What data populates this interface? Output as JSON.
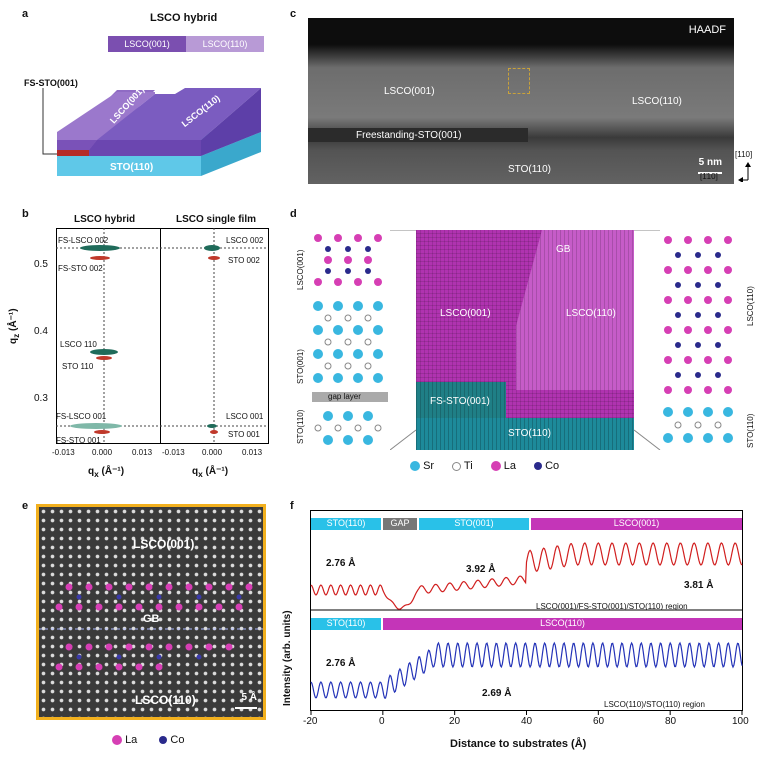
{
  "panels": {
    "a": "a",
    "b": "b",
    "c": "c",
    "d": "d",
    "e": "e",
    "f": "f"
  },
  "a": {
    "title": "LSCO hybrid",
    "bar_left": "LSCO(001)",
    "bar_right": "LSCO(110)",
    "fs_sto": "FS-STO(001)",
    "block_lsco001": "LSCO(001)",
    "block_lsco110": "LSCO(110)",
    "substrate": "STO(110)",
    "colors": {
      "lsco001": "#7b4fb0",
      "lsco110": "#b89ad6",
      "sto": "#5fc8e8",
      "fs": "#c0392b"
    }
  },
  "b": {
    "title_left": "LSCO hybrid",
    "title_right": "LSCO single film",
    "ylabel": "q",
    "ylabel_sub": "z",
    "ylabel_unit": "(Å⁻¹)",
    "xlabel": "q",
    "xlabel_sub": "x",
    "xlabel_unit": "(Å⁻¹)",
    "yticks": [
      "0.5",
      "0.4",
      "0.3"
    ],
    "xticks": [
      "-0.013",
      "0.000",
      "0.013"
    ],
    "left_labels": [
      "FS-LSCO 002",
      "FS-STO 002",
      "LSCO 110",
      "STO 110",
      "FS-LSCO 001",
      "FS-STO 001"
    ],
    "right_labels": [
      "LSCO 002",
      "STO 002",
      "LSCO 001",
      "STO 001"
    ]
  },
  "c": {
    "mode": "HAADF",
    "lsco001": "LSCO(001)",
    "lsco110": "LSCO(110)",
    "fs": "Freestanding-STO(001)",
    "sto": "STO(110)",
    "scale": "5 nm",
    "axis_up": "[110]",
    "axis_right": "[1̄10]"
  },
  "d": {
    "gb": "GB",
    "lsco001": "LSCO(001)",
    "lsco110": "LSCO(110)",
    "fs": "FS-STO(001)",
    "sto": "STO(110)",
    "gap": "gap layer",
    "side_left": [
      "LSCO(001)",
      "STO(001)",
      "STO(110)"
    ],
    "side_right": [
      "LSCO(110)",
      "STO(110)"
    ],
    "legend": [
      "Sr",
      "Ti",
      "La",
      "Co"
    ]
  },
  "e": {
    "lsco001": "LSCO(001)",
    "gb": "GB",
    "lsco110": "LSCO(110)",
    "scale": "5 Å",
    "legend": [
      "La",
      "Co"
    ]
  },
  "f": {
    "top_bar": [
      "STO(110)",
      "GAP",
      "STO(001)",
      "LSCO(001)"
    ],
    "bottom_bar": [
      "STO(110)",
      "LSCO(110)"
    ],
    "top_annotations": [
      "2.76 Å",
      "3.92 Å",
      "3.81 Å"
    ],
    "bottom_annotations": [
      "2.76 Å",
      "2.69 Å"
    ],
    "top_region": "LSCO(001)/FS-STO(001)/STO(110) region",
    "bottom_region": "LSCO(110)/STO(110) region",
    "ylabel": "Intensity (arb. units)",
    "xlabel": "Distance to substrates (Å)",
    "xticks": [
      "-20",
      "0",
      "20",
      "40",
      "60",
      "80",
      "100"
    ],
    "xlim": [
      -20,
      100
    ]
  }
}
